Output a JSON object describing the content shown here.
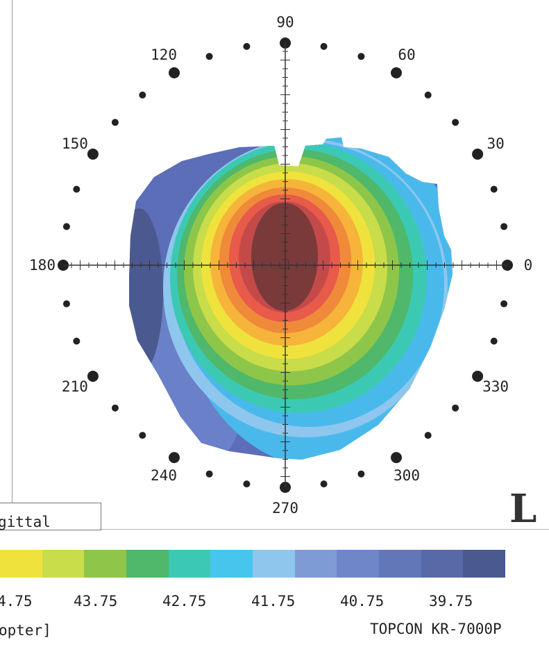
{
  "angle_labels": [
    {
      "text": "90",
      "angle": 90
    },
    {
      "text": "60",
      "angle": 60
    },
    {
      "text": "30",
      "angle": 30
    },
    {
      "text": "0",
      "angle": 0
    },
    {
      "text": "330",
      "angle": 330
    },
    {
      "text": "300",
      "angle": 300
    },
    {
      "text": "270",
      "angle": 270
    },
    {
      "text": "240",
      "angle": 240
    },
    {
      "text": "210",
      "angle": 210
    },
    {
      "text": "180",
      "angle": 180
    },
    {
      "text": "150",
      "angle": 150
    },
    {
      "text": "120",
      "angle": 120
    }
  ],
  "map_mode": "gittal",
  "eye": "L",
  "scale": {
    "colors": [
      "#f0e23c",
      "#c9dc4a",
      "#8ec64a",
      "#4fb86a",
      "#3cc9b4",
      "#46c6ec",
      "#8ec6ee",
      "#7f9bd6",
      "#6f86c8",
      "#6277b8",
      "#5769a6",
      "#4a5a90"
    ],
    "values": [
      "4.75",
      "43.75",
      "42.75",
      "41.75",
      "40.75",
      "39.75"
    ]
  },
  "unit": "opter]",
  "device": "TOPCON KR-7000P"
}
